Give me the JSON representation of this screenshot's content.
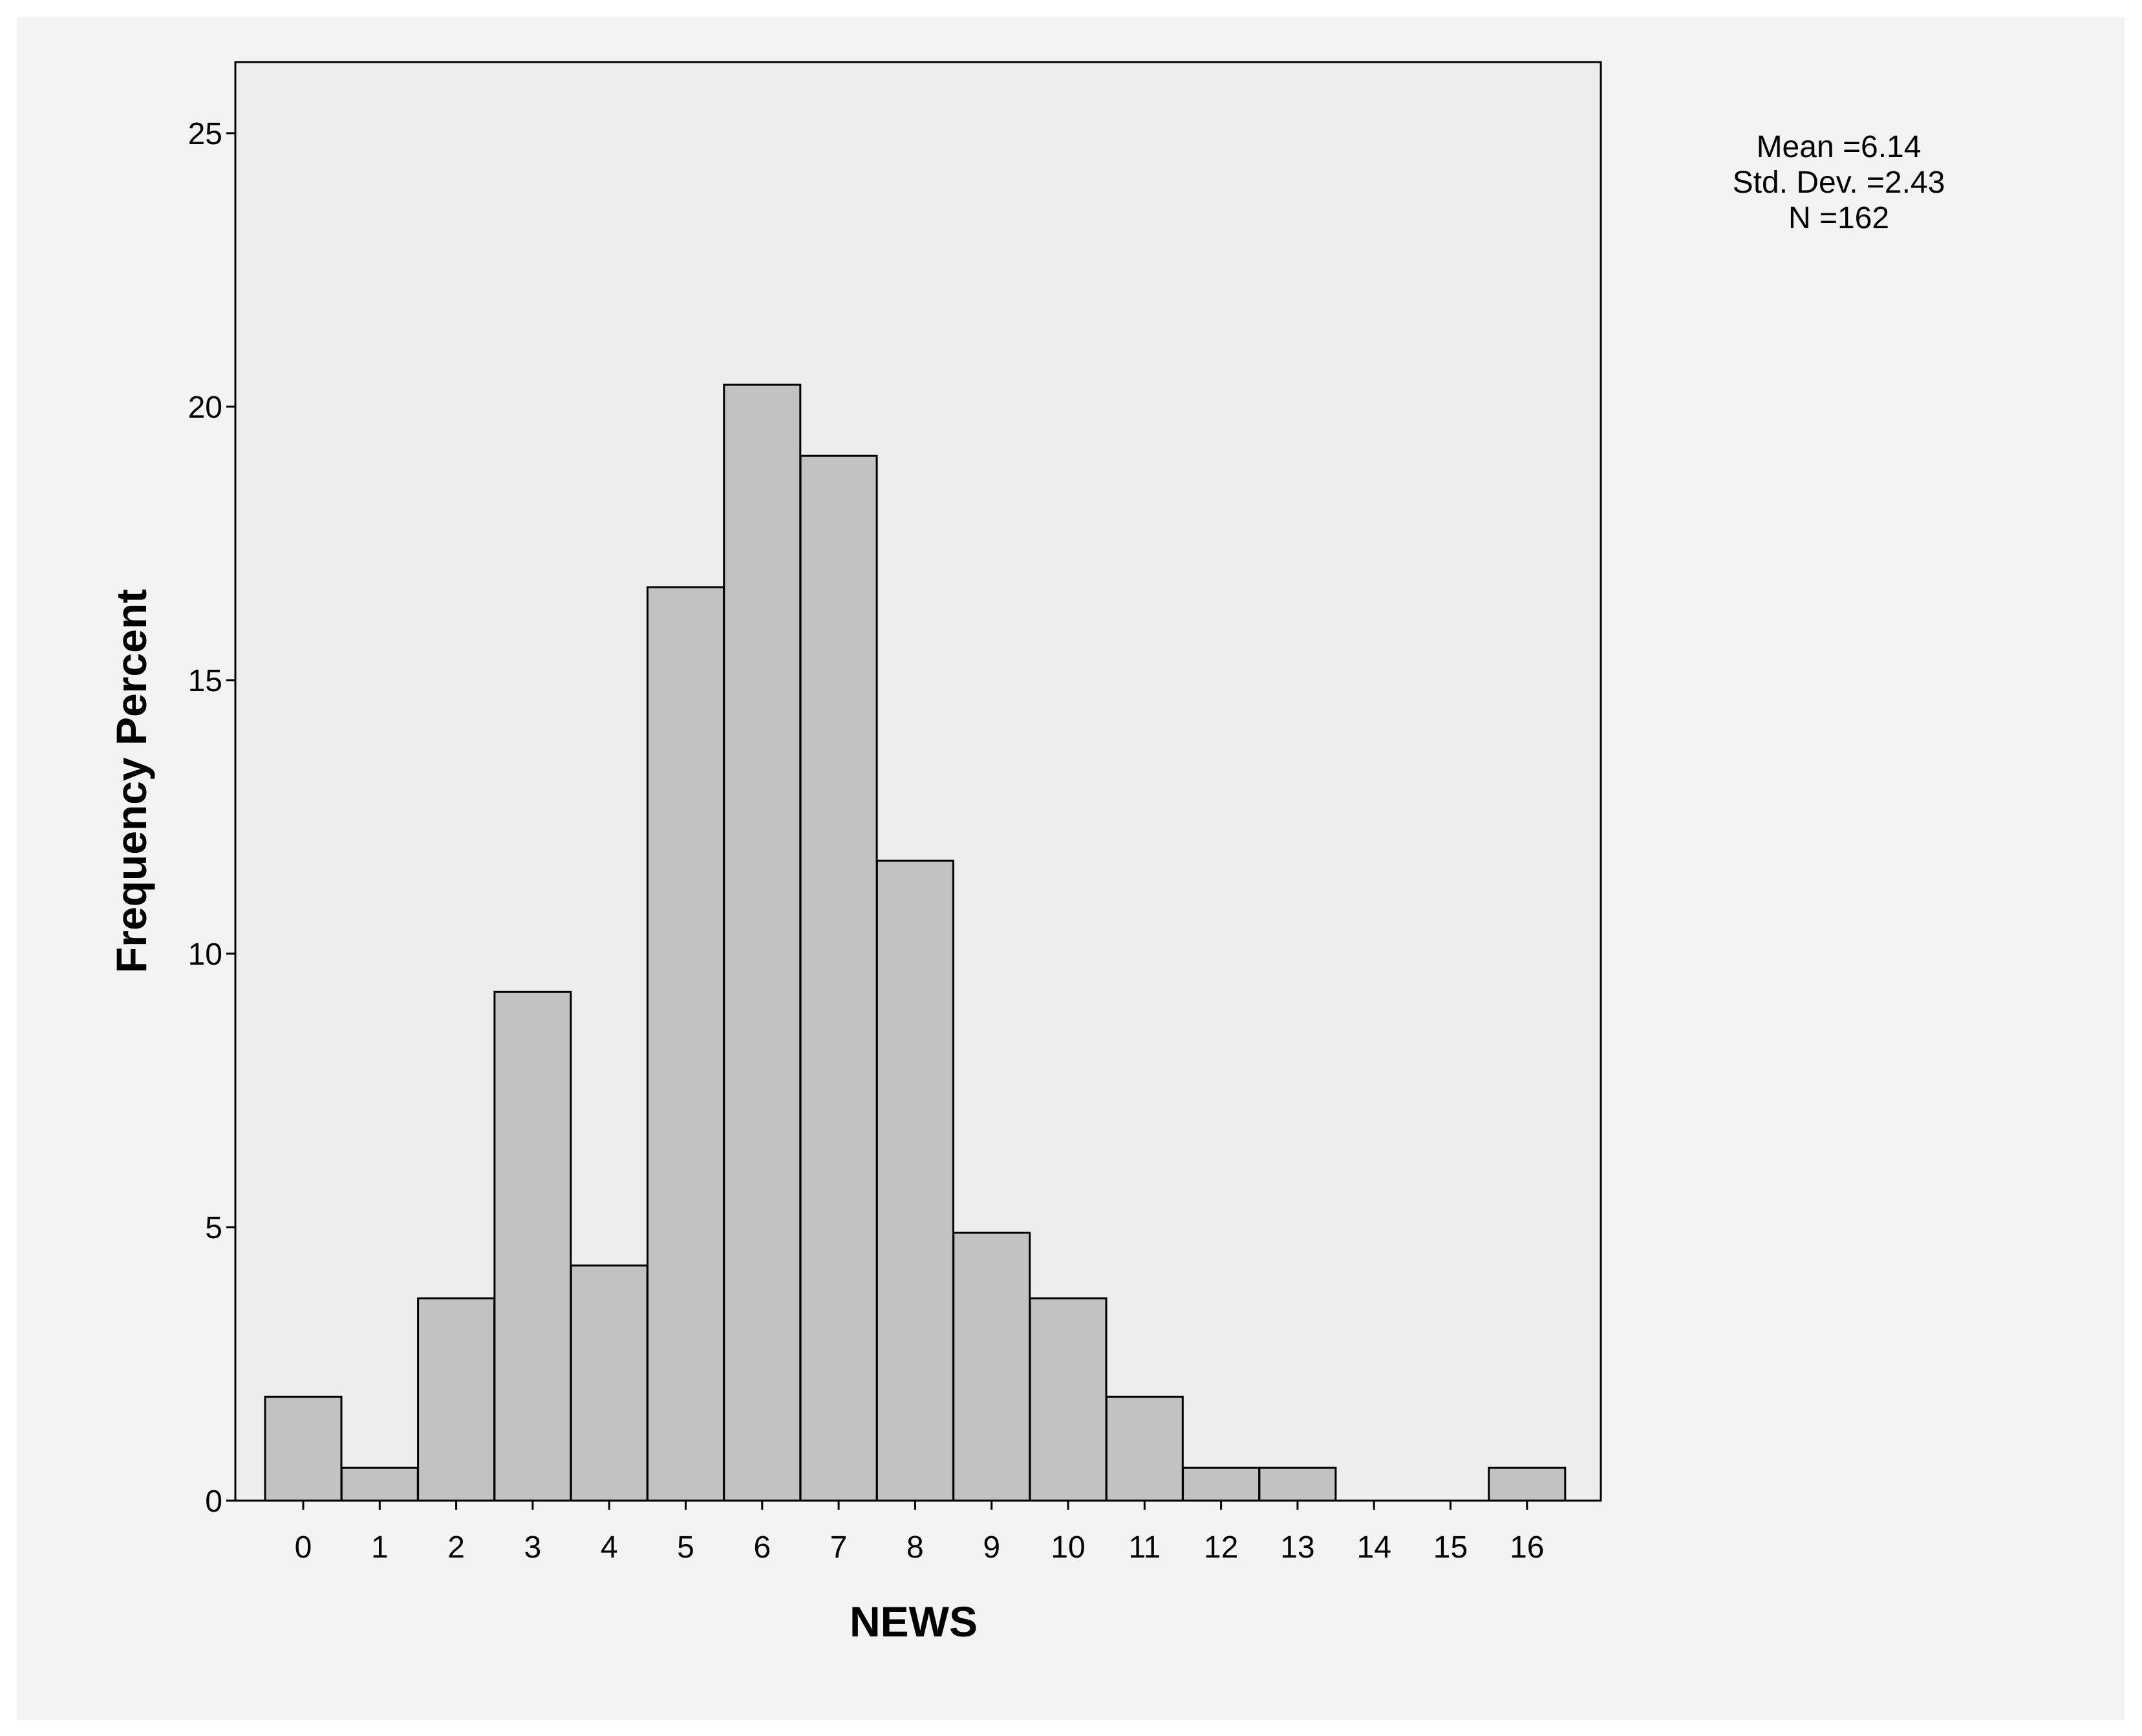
{
  "chart_data": {
    "type": "bar",
    "title": "",
    "xlabel": "NEWS",
    "ylabel": "Frequency Percent",
    "categories": [
      "0",
      "1",
      "2",
      "3",
      "4",
      "5",
      "6",
      "7",
      "8",
      "9",
      "10",
      "11",
      "12",
      "13",
      "14",
      "15",
      "16"
    ],
    "values": [
      1.9,
      0.6,
      3.7,
      9.3,
      4.3,
      16.7,
      20.4,
      19.1,
      11.7,
      4.9,
      3.7,
      1.9,
      0.6,
      0.6,
      0,
      0,
      0.6
    ],
    "ylim": [
      0,
      26.3
    ],
    "yticks": [
      0,
      5,
      10,
      15,
      20,
      25
    ],
    "grid": false,
    "bar_fill": "#c2c2c2",
    "bar_stroke": "#000000",
    "plot_background": "#ededed",
    "page_background": "#f3f3f3",
    "stats": {
      "mean": "Mean =6.14",
      "std_dev": "Std. Dev. =2.43",
      "n": "N =162"
    }
  }
}
